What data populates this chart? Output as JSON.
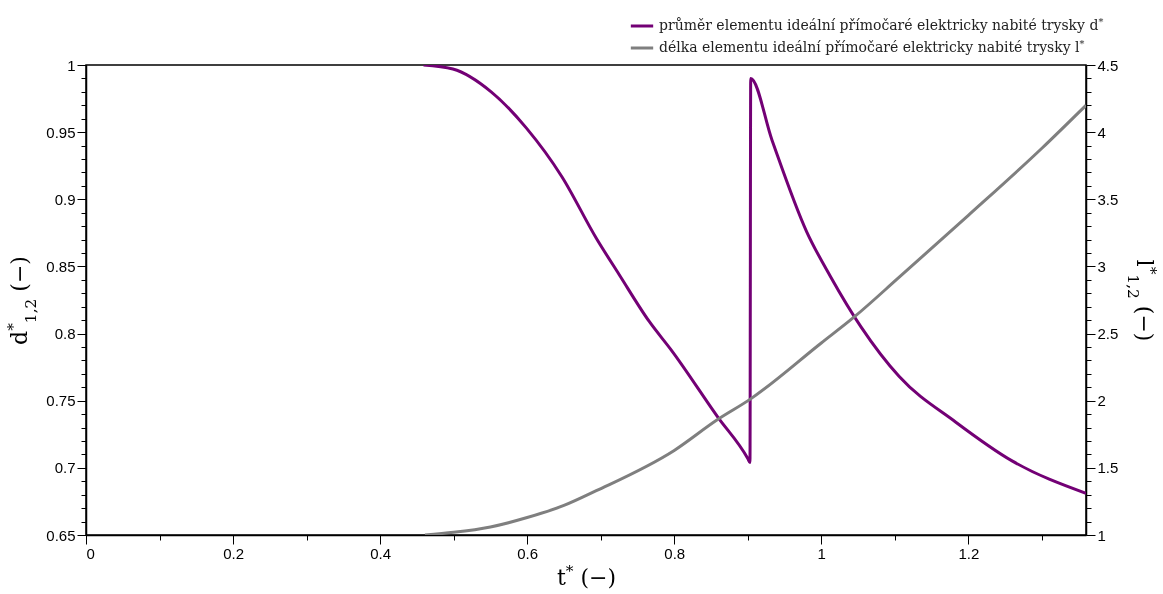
{
  "chart_data": {
    "type": "line",
    "xlabel": "t$^{*}$ (−)",
    "ylabel": "d$^{*}$$_{1,2}$ (−)",
    "y2label": "l$^{*}$$_{1,2}$ (−)",
    "legend": "top right",
    "xlim": [
      0,
      1.36
    ],
    "xticks": [
      0,
      {
        "value": 0.1,
        "label": null
      },
      0.2,
      {
        "value": 0.3,
        "label": null
      },
      0.4,
      {
        "value": 0.5,
        "label": null
      },
      0.6,
      {
        "value": 0.7,
        "label": null
      },
      0.8,
      {
        "value": 0.9,
        "label": null
      },
      1,
      {
        "value": 1.1,
        "label": null
      },
      1.2,
      {
        "value": 1.3,
        "label": null
      }
    ],
    "ylim": [
      0.65,
      1
    ],
    "yticks": [
      0.65,
      {
        "value": 0.66,
        "label": null
      },
      {
        "value": 0.67,
        "label": null
      },
      {
        "value": 0.68,
        "label": null
      },
      {
        "value": 0.69,
        "label": null
      },
      0.7,
      {
        "value": 0.71,
        "label": null
      },
      {
        "value": 0.72,
        "label": null
      },
      {
        "value": 0.73,
        "label": null
      },
      {
        "value": 0.74,
        "label": null
      },
      0.75,
      {
        "value": 0.76,
        "label": null
      },
      {
        "value": 0.77,
        "label": null
      },
      {
        "value": 0.78,
        "label": null
      },
      {
        "value": 0.79,
        "label": null
      },
      0.8,
      {
        "value": 0.81,
        "label": null
      },
      {
        "value": 0.82,
        "label": null
      },
      {
        "value": 0.83,
        "label": null
      },
      {
        "value": 0.84,
        "label": null
      },
      0.85,
      {
        "value": 0.86,
        "label": null
      },
      {
        "value": 0.87,
        "label": null
      },
      {
        "value": 0.88,
        "label": null
      },
      {
        "value": 0.89,
        "label": null
      },
      0.9,
      {
        "value": 0.91,
        "label": null
      },
      {
        "value": 0.92,
        "label": null
      },
      {
        "value": 0.93,
        "label": null
      },
      {
        "value": 0.94,
        "label": null
      },
      0.95,
      {
        "value": 0.96,
        "label": null
      },
      {
        "value": 0.97,
        "label": null
      },
      {
        "value": 0.98,
        "label": null
      },
      {
        "value": 0.99,
        "label": null
      },
      1
    ],
    "y2lim": [
      1,
      4.5
    ],
    "y2ticks": [
      1,
      {
        "value": 1.1,
        "label": null
      },
      {
        "value": 1.2,
        "label": null
      },
      {
        "value": 1.3,
        "label": null
      },
      {
        "value": 1.4,
        "label": null
      },
      1.5,
      {
        "value": 1.6,
        "label": null
      },
      {
        "value": 1.7,
        "label": null
      },
      {
        "value": 1.8,
        "label": null
      },
      {
        "value": 1.9,
        "label": null
      },
      2,
      {
        "value": 2.1,
        "label": null
      },
      {
        "value": 2.2,
        "label": null
      },
      {
        "value": 2.3,
        "label": null
      },
      {
        "value": 2.4,
        "label": null
      },
      2.5,
      {
        "value": 2.6,
        "label": null
      },
      {
        "value": 2.7,
        "label": null
      },
      {
        "value": 2.8,
        "label": null
      },
      {
        "value": 2.9,
        "label": null
      },
      3,
      {
        "value": 3.1,
        "label": null
      },
      {
        "value": 3.2,
        "label": null
      },
      {
        "value": 3.3,
        "label": null
      },
      {
        "value": 3.4,
        "label": null
      },
      3.5,
      {
        "value": 3.6,
        "label": null
      },
      {
        "value": 3.7,
        "label": null
      },
      {
        "value": 3.8,
        "label": null
      },
      {
        "value": 3.9,
        "label": null
      },
      4,
      {
        "value": 4.1,
        "label": null
      },
      {
        "value": 4.2,
        "label": null
      },
      {
        "value": 4.3,
        "label": null
      },
      {
        "value": 4.4,
        "label": null
      },
      4.5
    ],
    "series": [
      {
        "name": "průměr elementu ideální přímočaré elektricky nabité trysky d$^{*}$",
        "color": "#730075",
        "x": [
          0.459,
          0.499,
          0.551,
          0.599,
          0.647,
          0.694,
          0.725,
          0.766,
          0.797,
          0.859,
          0.9,
          0.903,
          0.904,
          0.933,
          0.98,
          1.013,
          1.054,
          1.106,
          1.183,
          1.26,
          1.36
        ],
        "values": [
          1.0,
          0.997,
          0.98,
          0.953,
          0.917,
          0.871,
          0.844,
          0.809,
          0.787,
          0.738,
          0.707,
          0.704,
          0.99,
          0.944,
          0.876,
          0.842,
          0.805,
          0.768,
          0.734,
          0.705,
          0.681
        ]
      },
      {
        "name": "délka elementu ideální přímočaré elektricky nabité trysky l$^{*}$",
        "color": "#7f7f7f",
        "axis": "y2",
        "x": [
          0.461,
          0.5,
          0.55,
          0.6,
          0.65,
          0.694,
          0.8,
          0.859,
          0.903,
          1.0,
          1.044,
          1.106,
          1.2,
          1.3,
          1.36
        ],
        "values": [
          1.0,
          1.02,
          1.06,
          1.13,
          1.22,
          1.33,
          1.63,
          1.86,
          2.01,
          2.43,
          2.62,
          2.92,
          3.38,
          3.88,
          4.2
        ]
      }
    ]
  }
}
